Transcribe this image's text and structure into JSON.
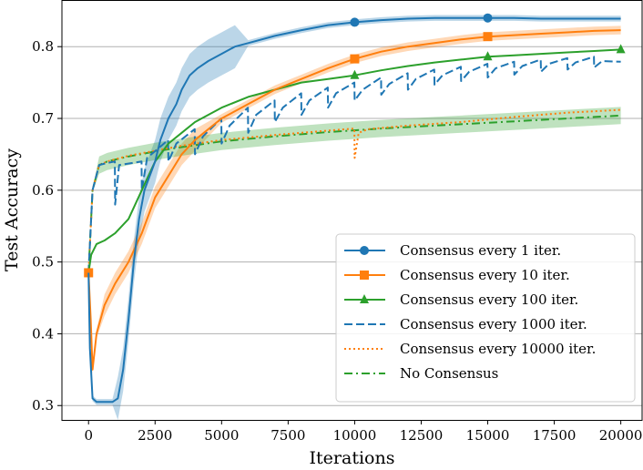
{
  "chart_data": {
    "type": "line",
    "xlabel": "Iterations",
    "ylabel": "Test Accuracy",
    "xlim": [
      -1000,
      20800
    ],
    "ylim": [
      0.28,
      0.865
    ],
    "xticks": [
      0,
      2500,
      5000,
      7500,
      10000,
      12500,
      15000,
      17500,
      20000
    ],
    "xtick_labels": [
      "0",
      "2500",
      "5000",
      "7500",
      "10000",
      "12500",
      "15000",
      "17500",
      "20000"
    ],
    "yticks": [
      0.3,
      0.4,
      0.5,
      0.6,
      0.7,
      0.8
    ],
    "ytick_labels": [
      "0.3",
      "0.4",
      "0.5",
      "0.6",
      "0.7",
      "0.8"
    ],
    "grid": "horizontal",
    "legend_position": "lower-right",
    "series": [
      {
        "name": "Consensus every 1 iter.",
        "color": "#1f77b4",
        "style": "solid",
        "marker": "circle",
        "markers_at": [
          10000,
          15000
        ],
        "points": [
          [
            0,
            0.485
          ],
          [
            50,
            0.38
          ],
          [
            150,
            0.31
          ],
          [
            300,
            0.305
          ],
          [
            900,
            0.305
          ],
          [
            1100,
            0.31
          ],
          [
            1300,
            0.35
          ],
          [
            1500,
            0.42
          ],
          [
            1700,
            0.5
          ],
          [
            1900,
            0.56
          ],
          [
            2100,
            0.6
          ],
          [
            2300,
            0.62
          ],
          [
            2500,
            0.64
          ],
          [
            2700,
            0.67
          ],
          [
            3000,
            0.7
          ],
          [
            3300,
            0.72
          ],
          [
            3500,
            0.74
          ],
          [
            3800,
            0.76
          ],
          [
            4100,
            0.77
          ],
          [
            4500,
            0.78
          ],
          [
            5000,
            0.79
          ],
          [
            5500,
            0.8
          ],
          [
            6000,
            0.805
          ],
          [
            7000,
            0.815
          ],
          [
            8000,
            0.823
          ],
          [
            9000,
            0.83
          ],
          [
            10000,
            0.834
          ],
          [
            11000,
            0.837
          ],
          [
            12000,
            0.839
          ],
          [
            13000,
            0.84
          ],
          [
            14000,
            0.84
          ],
          [
            15000,
            0.84
          ],
          [
            16000,
            0.84
          ],
          [
            17000,
            0.839
          ],
          [
            18000,
            0.839
          ],
          [
            19000,
            0.839
          ],
          [
            20000,
            0.839
          ]
        ]
      },
      {
        "name": "Consensus every 10 iter.",
        "color": "#ff7f0e",
        "style": "solid",
        "marker": "square",
        "markers_at": [
          0,
          10000,
          15000
        ],
        "points": [
          [
            0,
            0.485
          ],
          [
            80,
            0.42
          ],
          [
            150,
            0.35
          ],
          [
            300,
            0.4
          ],
          [
            600,
            0.44
          ],
          [
            1000,
            0.47
          ],
          [
            1500,
            0.5
          ],
          [
            2000,
            0.54
          ],
          [
            2500,
            0.59
          ],
          [
            3000,
            0.62
          ],
          [
            3500,
            0.65
          ],
          [
            4000,
            0.67
          ],
          [
            5000,
            0.7
          ],
          [
            6000,
            0.72
          ],
          [
            7000,
            0.74
          ],
          [
            8000,
            0.755
          ],
          [
            9000,
            0.77
          ],
          [
            10000,
            0.783
          ],
          [
            11000,
            0.793
          ],
          [
            12000,
            0.8
          ],
          [
            13000,
            0.805
          ],
          [
            14000,
            0.81
          ],
          [
            15000,
            0.814
          ],
          [
            16000,
            0.816
          ],
          [
            17000,
            0.818
          ],
          [
            18000,
            0.82
          ],
          [
            19000,
            0.822
          ],
          [
            20000,
            0.823
          ]
        ]
      },
      {
        "name": "Consensus every 100 iter.",
        "color": "#2ca02c",
        "style": "solid",
        "marker": "triangle",
        "markers_at": [
          10000,
          15000,
          20000
        ],
        "points": [
          [
            0,
            0.485
          ],
          [
            100,
            0.51
          ],
          [
            300,
            0.525
          ],
          [
            600,
            0.53
          ],
          [
            1000,
            0.54
          ],
          [
            1500,
            0.56
          ],
          [
            2000,
            0.6
          ],
          [
            2500,
            0.64
          ],
          [
            3000,
            0.665
          ],
          [
            3500,
            0.68
          ],
          [
            4000,
            0.695
          ],
          [
            5000,
            0.715
          ],
          [
            6000,
            0.73
          ],
          [
            7000,
            0.74
          ],
          [
            8000,
            0.75
          ],
          [
            9000,
            0.755
          ],
          [
            10000,
            0.76
          ],
          [
            11000,
            0.767
          ],
          [
            12000,
            0.773
          ],
          [
            13000,
            0.778
          ],
          [
            14000,
            0.782
          ],
          [
            15000,
            0.786
          ],
          [
            16000,
            0.788
          ],
          [
            17000,
            0.79
          ],
          [
            18000,
            0.792
          ],
          [
            19000,
            0.794
          ],
          [
            20000,
            0.796
          ]
        ]
      },
      {
        "name": "Consensus every 1000 iter.",
        "color": "#1f77b4",
        "style": "dashed",
        "marker": "none",
        "markers_at": [],
        "points": [
          [
            0,
            0.485
          ],
          [
            150,
            0.6
          ],
          [
            400,
            0.635
          ],
          [
            700,
            0.638
          ],
          [
            990,
            0.64
          ],
          [
            1000,
            0.58
          ],
          [
            1150,
            0.635
          ],
          [
            1990,
            0.64
          ],
          [
            2000,
            0.6
          ],
          [
            2200,
            0.645
          ],
          [
            2990,
            0.67
          ],
          [
            3000,
            0.64
          ],
          [
            3300,
            0.665
          ],
          [
            3990,
            0.685
          ],
          [
            4000,
            0.65
          ],
          [
            4300,
            0.675
          ],
          [
            4990,
            0.7
          ],
          [
            5000,
            0.665
          ],
          [
            5300,
            0.69
          ],
          [
            5990,
            0.715
          ],
          [
            6000,
            0.68
          ],
          [
            6300,
            0.705
          ],
          [
            6990,
            0.725
          ],
          [
            7000,
            0.695
          ],
          [
            7300,
            0.715
          ],
          [
            7990,
            0.735
          ],
          [
            8000,
            0.705
          ],
          [
            8300,
            0.725
          ],
          [
            8990,
            0.743
          ],
          [
            9000,
            0.715
          ],
          [
            9300,
            0.735
          ],
          [
            9990,
            0.75
          ],
          [
            10000,
            0.725
          ],
          [
            10300,
            0.74
          ],
          [
            10990,
            0.757
          ],
          [
            11000,
            0.733
          ],
          [
            11300,
            0.748
          ],
          [
            11990,
            0.763
          ],
          [
            12000,
            0.74
          ],
          [
            12300,
            0.755
          ],
          [
            12990,
            0.768
          ],
          [
            13000,
            0.747
          ],
          [
            13300,
            0.76
          ],
          [
            13990,
            0.772
          ],
          [
            14000,
            0.752
          ],
          [
            14300,
            0.765
          ],
          [
            14990,
            0.776
          ],
          [
            15000,
            0.757
          ],
          [
            15300,
            0.77
          ],
          [
            15990,
            0.779
          ],
          [
            16000,
            0.761
          ],
          [
            16300,
            0.773
          ],
          [
            16990,
            0.782
          ],
          [
            17000,
            0.765
          ],
          [
            17300,
            0.776
          ],
          [
            17990,
            0.784
          ],
          [
            18000,
            0.768
          ],
          [
            18300,
            0.778
          ],
          [
            18990,
            0.786
          ],
          [
            19000,
            0.771
          ],
          [
            19300,
            0.78
          ],
          [
            20000,
            0.779
          ]
        ]
      },
      {
        "name": "Consensus every 10000 iter.",
        "color": "#ff7f0e",
        "style": "dotted",
        "marker": "none",
        "markers_at": [],
        "points": [
          [
            0,
            0.485
          ],
          [
            150,
            0.6
          ],
          [
            400,
            0.635
          ],
          [
            700,
            0.64
          ],
          [
            1500,
            0.648
          ],
          [
            2500,
            0.655
          ],
          [
            3500,
            0.662
          ],
          [
            5000,
            0.67
          ],
          [
            7000,
            0.677
          ],
          [
            9000,
            0.683
          ],
          [
            9990,
            0.686
          ],
          [
            10000,
            0.645
          ],
          [
            10150,
            0.68
          ],
          [
            10500,
            0.685
          ],
          [
            12000,
            0.69
          ],
          [
            14000,
            0.695
          ],
          [
            16000,
            0.702
          ],
          [
            18000,
            0.708
          ],
          [
            20000,
            0.712
          ]
        ]
      },
      {
        "name": "No Consensus",
        "color": "#2ca02c",
        "style": "dashdot",
        "marker": "none",
        "markers_at": [],
        "points": [
          [
            0,
            0.485
          ],
          [
            150,
            0.6
          ],
          [
            400,
            0.635
          ],
          [
            700,
            0.64
          ],
          [
            1500,
            0.647
          ],
          [
            2500,
            0.654
          ],
          [
            3500,
            0.66
          ],
          [
            5000,
            0.668
          ],
          [
            7000,
            0.675
          ],
          [
            9000,
            0.681
          ],
          [
            11000,
            0.686
          ],
          [
            13000,
            0.69
          ],
          [
            15000,
            0.694
          ],
          [
            17000,
            0.698
          ],
          [
            19000,
            0.702
          ],
          [
            20000,
            0.704
          ]
        ]
      }
    ]
  }
}
